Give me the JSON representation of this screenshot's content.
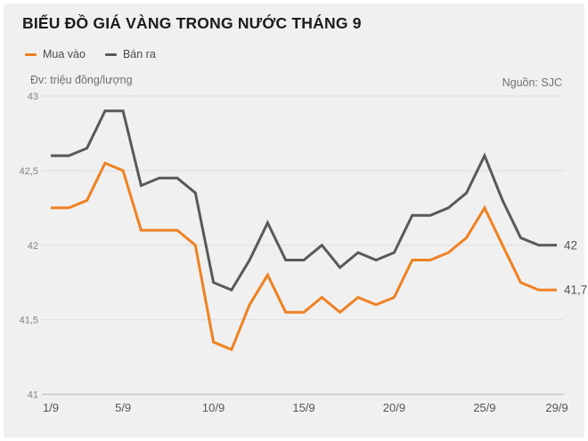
{
  "title": "BIỂU ĐỒ GIÁ VÀNG TRONG NƯỚC THÁNG 9",
  "unit_note": "Đv: triệu đồng/lượng",
  "source_note": "Nguồn: SJC",
  "legend": {
    "items": [
      {
        "label": "Mua vào",
        "color": "#ef8122"
      },
      {
        "label": "Bán ra",
        "color": "#58595b"
      }
    ]
  },
  "colors": {
    "background": "#f0f0f1",
    "buy_line": "#ef8122",
    "sell_line": "#58595b",
    "gridline": "#dddddf",
    "title_text": "#1b1b1b",
    "muted_text": "#6f7073"
  },
  "chart_data": {
    "type": "line",
    "title": "BIỂU ĐỒ GIÁ VÀNG TRONG NƯỚC THÁNG 9",
    "xlabel": "",
    "ylabel": "triệu đồng/lượng",
    "ylim": [
      41,
      43
    ],
    "grid": true,
    "legend_position": "top-left",
    "x_unit": "day of September",
    "x": [
      1,
      2,
      3,
      4,
      5,
      6,
      7,
      8,
      9,
      10,
      11,
      12,
      13,
      14,
      15,
      16,
      17,
      18,
      19,
      20,
      21,
      22,
      23,
      24,
      25,
      26,
      27,
      28,
      29
    ],
    "x_tick_days": [
      1,
      5,
      10,
      15,
      20,
      25,
      29
    ],
    "x_tick_labels": [
      "1/9",
      "5/9",
      "10/9",
      "15/9",
      "20/9",
      "25/9",
      "29/9"
    ],
    "y_ticks": [
      41,
      41.5,
      42,
      42.5,
      43
    ],
    "y_tick_labels": [
      "41",
      "41,5",
      "42",
      "42,5",
      "43"
    ],
    "series": [
      {
        "name": "Bán ra",
        "color": "#58595b",
        "end_label": "42",
        "values": [
          42.6,
          42.6,
          42.65,
          42.9,
          42.9,
          42.4,
          42.45,
          42.45,
          42.35,
          41.75,
          41.7,
          41.9,
          42.15,
          41.9,
          41.9,
          42.0,
          41.85,
          41.95,
          41.9,
          41.95,
          42.2,
          42.2,
          42.25,
          42.35,
          42.6,
          42.3,
          42.05,
          42.0,
          42.0
        ]
      },
      {
        "name": "Mua vào",
        "color": "#ef8122",
        "end_label": "41,7",
        "values": [
          42.25,
          42.25,
          42.3,
          42.55,
          42.5,
          42.1,
          42.1,
          42.1,
          42.0,
          41.35,
          41.3,
          41.6,
          41.8,
          41.55,
          41.55,
          41.65,
          41.55,
          41.65,
          41.6,
          41.65,
          41.9,
          41.9,
          41.95,
          42.05,
          42.25,
          42.0,
          41.75,
          41.7,
          41.7
        ]
      }
    ]
  }
}
